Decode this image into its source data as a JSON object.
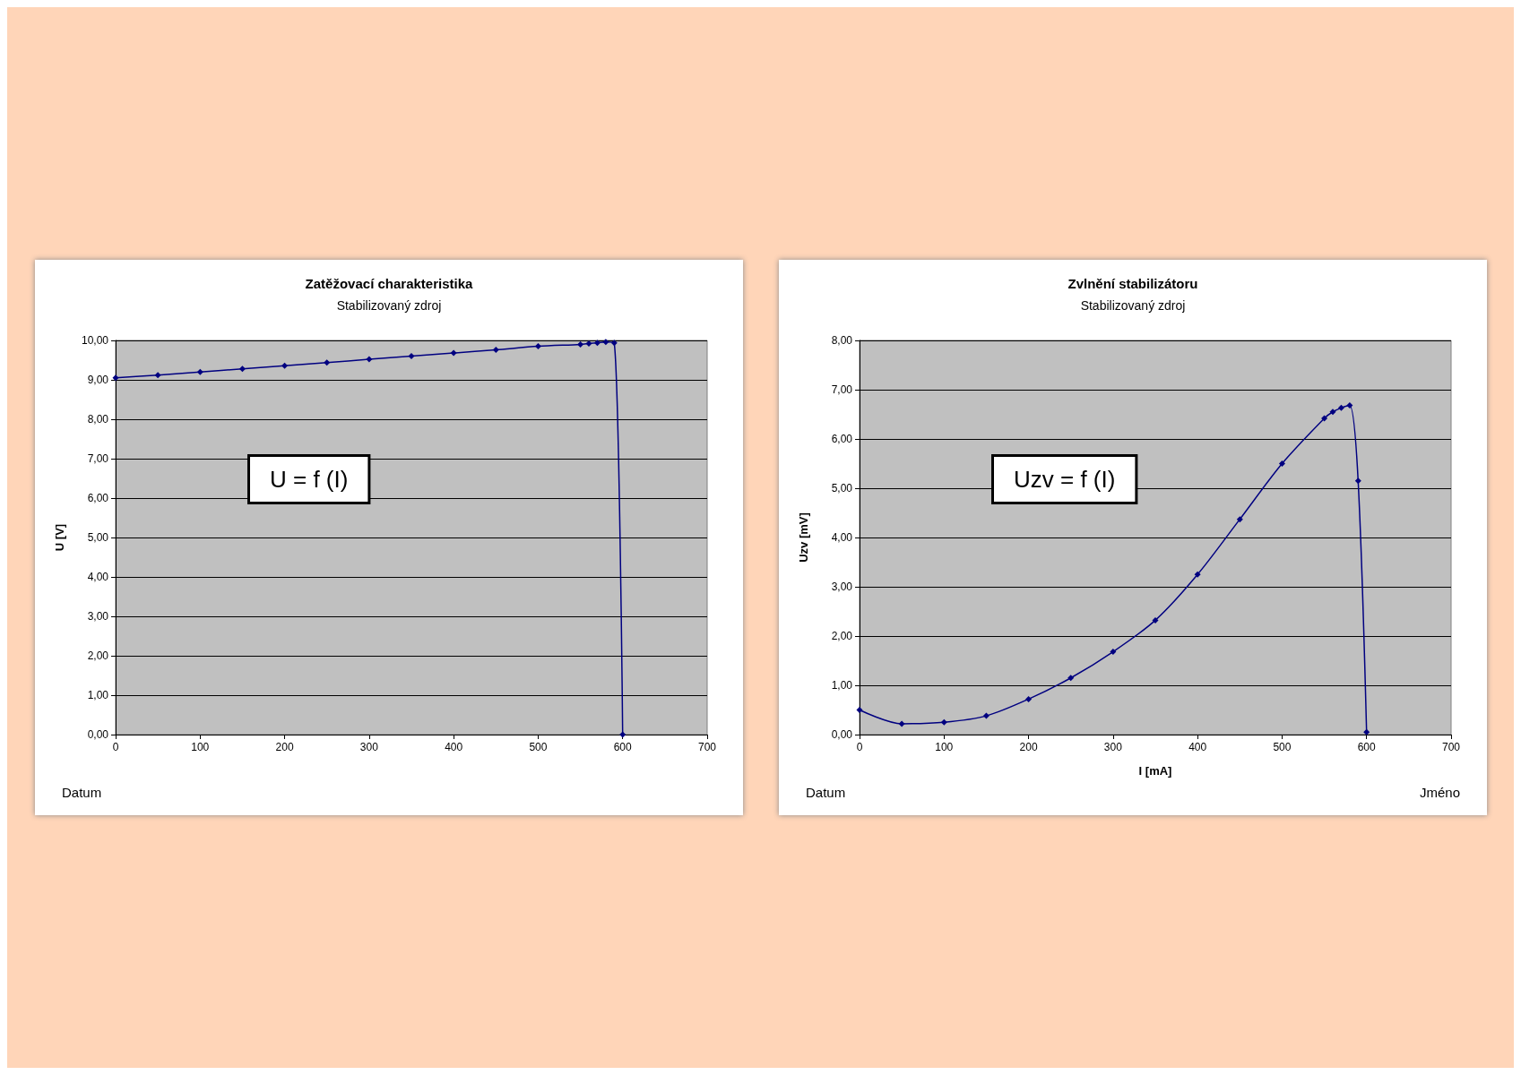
{
  "chart_data": [
    {
      "type": "line",
      "title": "Zatěžovací charakteristika",
      "subtitle": "Stabilizovaný zdroj",
      "ylabel": "U [V]",
      "annotations": [
        "U = f (I)",
        "Datum"
      ],
      "x": [
        0,
        50,
        100,
        150,
        200,
        250,
        300,
        350,
        400,
        450,
        500,
        550,
        560,
        570,
        580,
        590,
        600
      ],
      "series": [
        {
          "color": "#000080",
          "values": [
            9.05,
            9.12,
            9.2,
            9.28,
            9.36,
            9.44,
            9.52,
            9.6,
            9.68,
            9.76,
            9.85,
            9.9,
            9.92,
            9.94,
            9.96,
            9.94,
            0
          ]
        }
      ],
      "xlim": [
        0,
        700
      ],
      "xticks": [
        0,
        100,
        200,
        300,
        400,
        500,
        600,
        700
      ],
      "ylim": [
        0,
        10
      ],
      "yticks": [
        {
          "value": 0,
          "label": "0,00"
        },
        {
          "value": 1,
          "label": "1,00"
        },
        {
          "value": 2,
          "label": "2,00"
        },
        {
          "value": 3,
          "label": "3,00"
        },
        {
          "value": 4,
          "label": "4,00"
        },
        {
          "value": 5,
          "label": "5,00"
        },
        {
          "value": 6,
          "label": "6,00"
        },
        {
          "value": 7,
          "label": "7,00"
        },
        {
          "value": 8,
          "label": "8,00"
        },
        {
          "value": 9,
          "label": "9,00"
        },
        {
          "value": 10,
          "label": "10,00"
        }
      ],
      "grid": "y",
      "marker": "diamond",
      "line_style": "solid"
    },
    {
      "type": "line",
      "title": "Zvlnění stabilizátoru",
      "subtitle": "Stabilizovaný zdroj",
      "xlabel": "I [mA]",
      "ylabel": "Uzv [mV]",
      "annotations": [
        "Uzv = f (I)",
        "Datum",
        "Jméno"
      ],
      "x": [
        0,
        50,
        100,
        150,
        200,
        250,
        300,
        350,
        400,
        450,
        500,
        550,
        560,
        570,
        580,
        590,
        600
      ],
      "series": [
        {
          "color": "#000080",
          "values": [
            0.5,
            0.22,
            0.25,
            0.38,
            0.72,
            1.15,
            1.68,
            2.32,
            3.25,
            4.37,
            5.5,
            6.42,
            6.55,
            6.63,
            6.68,
            5.15,
            0.05
          ]
        }
      ],
      "xlim": [
        0,
        700
      ],
      "xticks": [
        0,
        100,
        200,
        300,
        400,
        500,
        600,
        700
      ],
      "ylim": [
        0,
        8
      ],
      "yticks": [
        {
          "value": 0,
          "label": "0,00"
        },
        {
          "value": 1,
          "label": "1,00"
        },
        {
          "value": 2,
          "label": "2,00"
        },
        {
          "value": 3,
          "label": "3,00"
        },
        {
          "value": 4,
          "label": "4,00"
        },
        {
          "value": 5,
          "label": "5,00"
        },
        {
          "value": 6,
          "label": "6,00"
        },
        {
          "value": 7,
          "label": "7,00"
        },
        {
          "value": 8,
          "label": "8,00"
        }
      ],
      "grid": "y",
      "marker": "diamond",
      "line_style": "solid"
    }
  ]
}
